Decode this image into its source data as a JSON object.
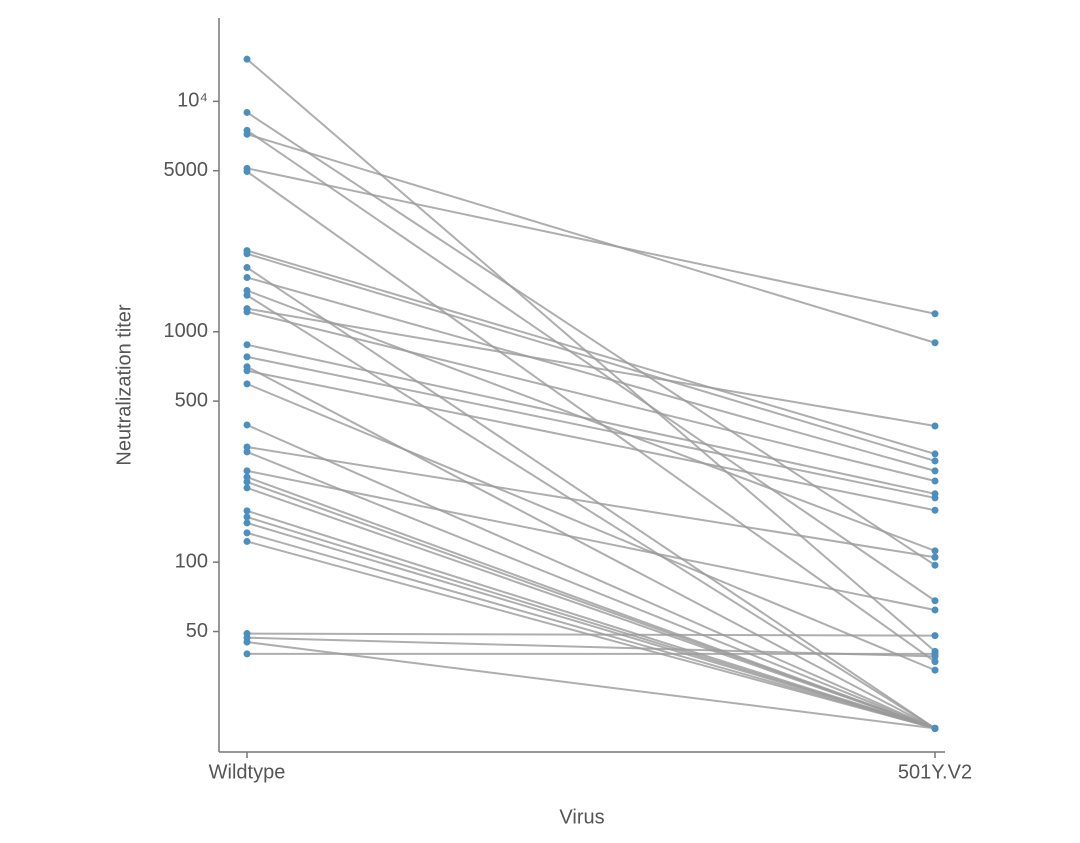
{
  "chart_data": {
    "type": "line",
    "x_label": "Virus",
    "y_label": "Neutralization titer",
    "categories": [
      "Wildtype",
      "501Y.V2"
    ],
    "log_scale": true,
    "ylim": [
      15,
      23000
    ],
    "yticks": [
      50,
      100,
      500,
      1000,
      5000,
      {
        "value": 10000,
        "label": "10⁴"
      }
    ],
    "line_color": "#9a9a9a",
    "marker_color": "#4a8fc0",
    "series": [
      {
        "values": [
          15240,
          41
        ]
      },
      {
        "values": [
          8950,
          97
        ]
      },
      {
        "values": [
          7480,
          68
        ]
      },
      {
        "values": [
          7200,
          896
        ]
      },
      {
        "values": [
          5120,
          1197
        ]
      },
      {
        "values": [
          4960,
          37
        ]
      },
      {
        "values": [
          2250,
          295
        ]
      },
      {
        "values": [
          2180,
          275
        ]
      },
      {
        "values": [
          1900,
          19
        ]
      },
      {
        "values": [
          1720,
          249
        ]
      },
      {
        "values": [
          1510,
          112
        ]
      },
      {
        "values": [
          1440,
          19
        ]
      },
      {
        "values": [
          1260,
          390
        ]
      },
      {
        "values": [
          1220,
          225
        ]
      },
      {
        "values": [
          878,
          198
        ]
      },
      {
        "values": [
          778,
          190
        ]
      },
      {
        "values": [
          705,
          19
        ]
      },
      {
        "values": [
          677,
          168
        ]
      },
      {
        "values": [
          594,
          34
        ]
      },
      {
        "values": [
          394,
          19
        ]
      },
      {
        "values": [
          316,
          105
        ]
      },
      {
        "values": [
          301,
          19
        ]
      },
      {
        "values": [
          249,
          62
        ]
      },
      {
        "values": [
          234,
          19
        ]
      },
      {
        "values": [
          223,
          19
        ]
      },
      {
        "values": [
          210,
          19
        ]
      },
      {
        "values": [
          167,
          19
        ]
      },
      {
        "values": [
          157,
          19
        ]
      },
      {
        "values": [
          148,
          19
        ]
      },
      {
        "values": [
          134,
          19
        ]
      },
      {
        "values": [
          123,
          19
        ]
      },
      {
        "values": [
          49,
          48
        ]
      },
      {
        "values": [
          47,
          39
        ]
      },
      {
        "values": [
          45,
          19
        ]
      },
      {
        "values": [
          40,
          40
        ]
      }
    ]
  }
}
